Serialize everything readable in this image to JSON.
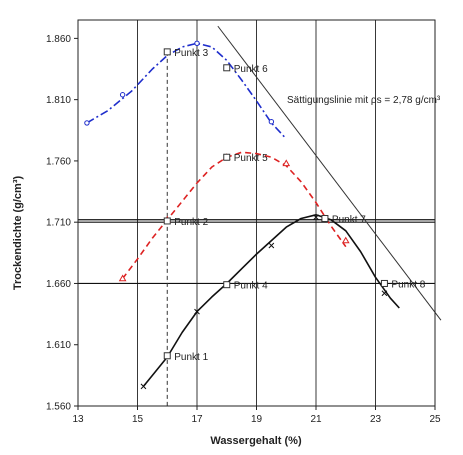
{
  "chart_data": {
    "type": "line",
    "title": "",
    "xlabel": "Wassergehalt (%)",
    "ylabel": "Trockendichte (g/cm³)",
    "xlim": [
      13,
      25
    ],
    "ylim": [
      1.56,
      1.875
    ],
    "x_ticks": [
      "13",
      "15",
      "17",
      "19",
      "21",
      "23",
      "25"
    ],
    "y_ticks": [
      "1.560",
      "1.610",
      "1.660",
      "1.710",
      "1.760",
      "1.810",
      "1.860"
    ],
    "grid": "vertical",
    "legend": "none",
    "series": [
      {
        "color": "#1f2ecc",
        "style": "dash-dot",
        "marker": "circle",
        "points": [
          [
            13.3,
            1.791
          ],
          [
            14.5,
            1.814
          ],
          [
            16,
            1.849
          ],
          [
            17,
            1.856
          ],
          [
            18,
            1.836
          ],
          [
            19.5,
            1.792
          ]
        ],
        "curve": [
          [
            13.3,
            1.791
          ],
          [
            14,
            1.801
          ],
          [
            14.8,
            1.817
          ],
          [
            15.5,
            1.835
          ],
          [
            16,
            1.846
          ],
          [
            16.5,
            1.853
          ],
          [
            17,
            1.856
          ],
          [
            17.5,
            1.853
          ],
          [
            18,
            1.842
          ],
          [
            18.5,
            1.826
          ],
          [
            19,
            1.809
          ],
          [
            19.5,
            1.791
          ],
          [
            20,
            1.778
          ]
        ]
      },
      {
        "color": "#dd2222",
        "style": "dash",
        "marker": "triangle",
        "points": [
          [
            14.5,
            1.664
          ],
          [
            16,
            1.712
          ],
          [
            18,
            1.763
          ],
          [
            20,
            1.758
          ],
          [
            21.3,
            1.713
          ],
          [
            22,
            1.695
          ]
        ],
        "curve": [
          [
            14.5,
            1.664
          ],
          [
            15,
            1.68
          ],
          [
            15.5,
            1.697
          ],
          [
            16,
            1.712
          ],
          [
            16.5,
            1.727
          ],
          [
            17,
            1.742
          ],
          [
            17.5,
            1.755
          ],
          [
            18,
            1.763
          ],
          [
            18.5,
            1.767
          ],
          [
            19,
            1.766
          ],
          [
            19.5,
            1.763
          ],
          [
            20,
            1.756
          ],
          [
            20.5,
            1.743
          ],
          [
            21,
            1.726
          ],
          [
            21.5,
            1.707
          ],
          [
            22,
            1.69
          ]
        ]
      },
      {
        "color": "#111111",
        "style": "solid",
        "marker": "cross",
        "points": [
          [
            15.2,
            1.576
          ],
          [
            16,
            1.601
          ],
          [
            17,
            1.637
          ],
          [
            18,
            1.659
          ],
          [
            19.5,
            1.691
          ],
          [
            21,
            1.714
          ],
          [
            23.3,
            1.652
          ]
        ],
        "curve": [
          [
            15.2,
            1.576
          ],
          [
            15.5,
            1.585
          ],
          [
            16,
            1.6
          ],
          [
            16.5,
            1.62
          ],
          [
            17,
            1.637
          ],
          [
            17.5,
            1.649
          ],
          [
            18,
            1.66
          ],
          [
            18.5,
            1.672
          ],
          [
            19,
            1.684
          ],
          [
            19.5,
            1.695
          ],
          [
            20,
            1.706
          ],
          [
            20.5,
            1.713
          ],
          [
            21,
            1.716
          ],
          [
            21.5,
            1.712
          ],
          [
            22,
            1.703
          ],
          [
            22.5,
            1.686
          ],
          [
            23,
            1.665
          ],
          [
            23.5,
            1.648
          ],
          [
            23.8,
            1.64
          ]
        ]
      }
    ],
    "saturation_line": {
      "label": "Sättigungslinie mit ρs = 2,78 g/cm³",
      "points": [
        [
          17.7,
          1.87
        ],
        [
          25.2,
          1.63
        ]
      ]
    },
    "reference_lines": {
      "horizontal": [
        1.712,
        1.71,
        1.66
      ],
      "vertical_dashed": 16
    },
    "punkte": [
      {
        "label": "Punkt 1",
        "x": 16,
        "y": 1.601
      },
      {
        "label": "Punkt 2",
        "x": 16,
        "y": 1.711
      },
      {
        "label": "Punkt 3",
        "x": 16,
        "y": 1.849
      },
      {
        "label": "Punkt 4",
        "x": 18,
        "y": 1.659
      },
      {
        "label": "Punkt 5",
        "x": 18,
        "y": 1.763
      },
      {
        "label": "Punkt 6",
        "x": 18,
        "y": 1.836
      },
      {
        "label": "Punkt 7",
        "x": 21.3,
        "y": 1.713
      },
      {
        "label": "Punkt 8",
        "x": 23.3,
        "y": 1.66
      }
    ]
  }
}
